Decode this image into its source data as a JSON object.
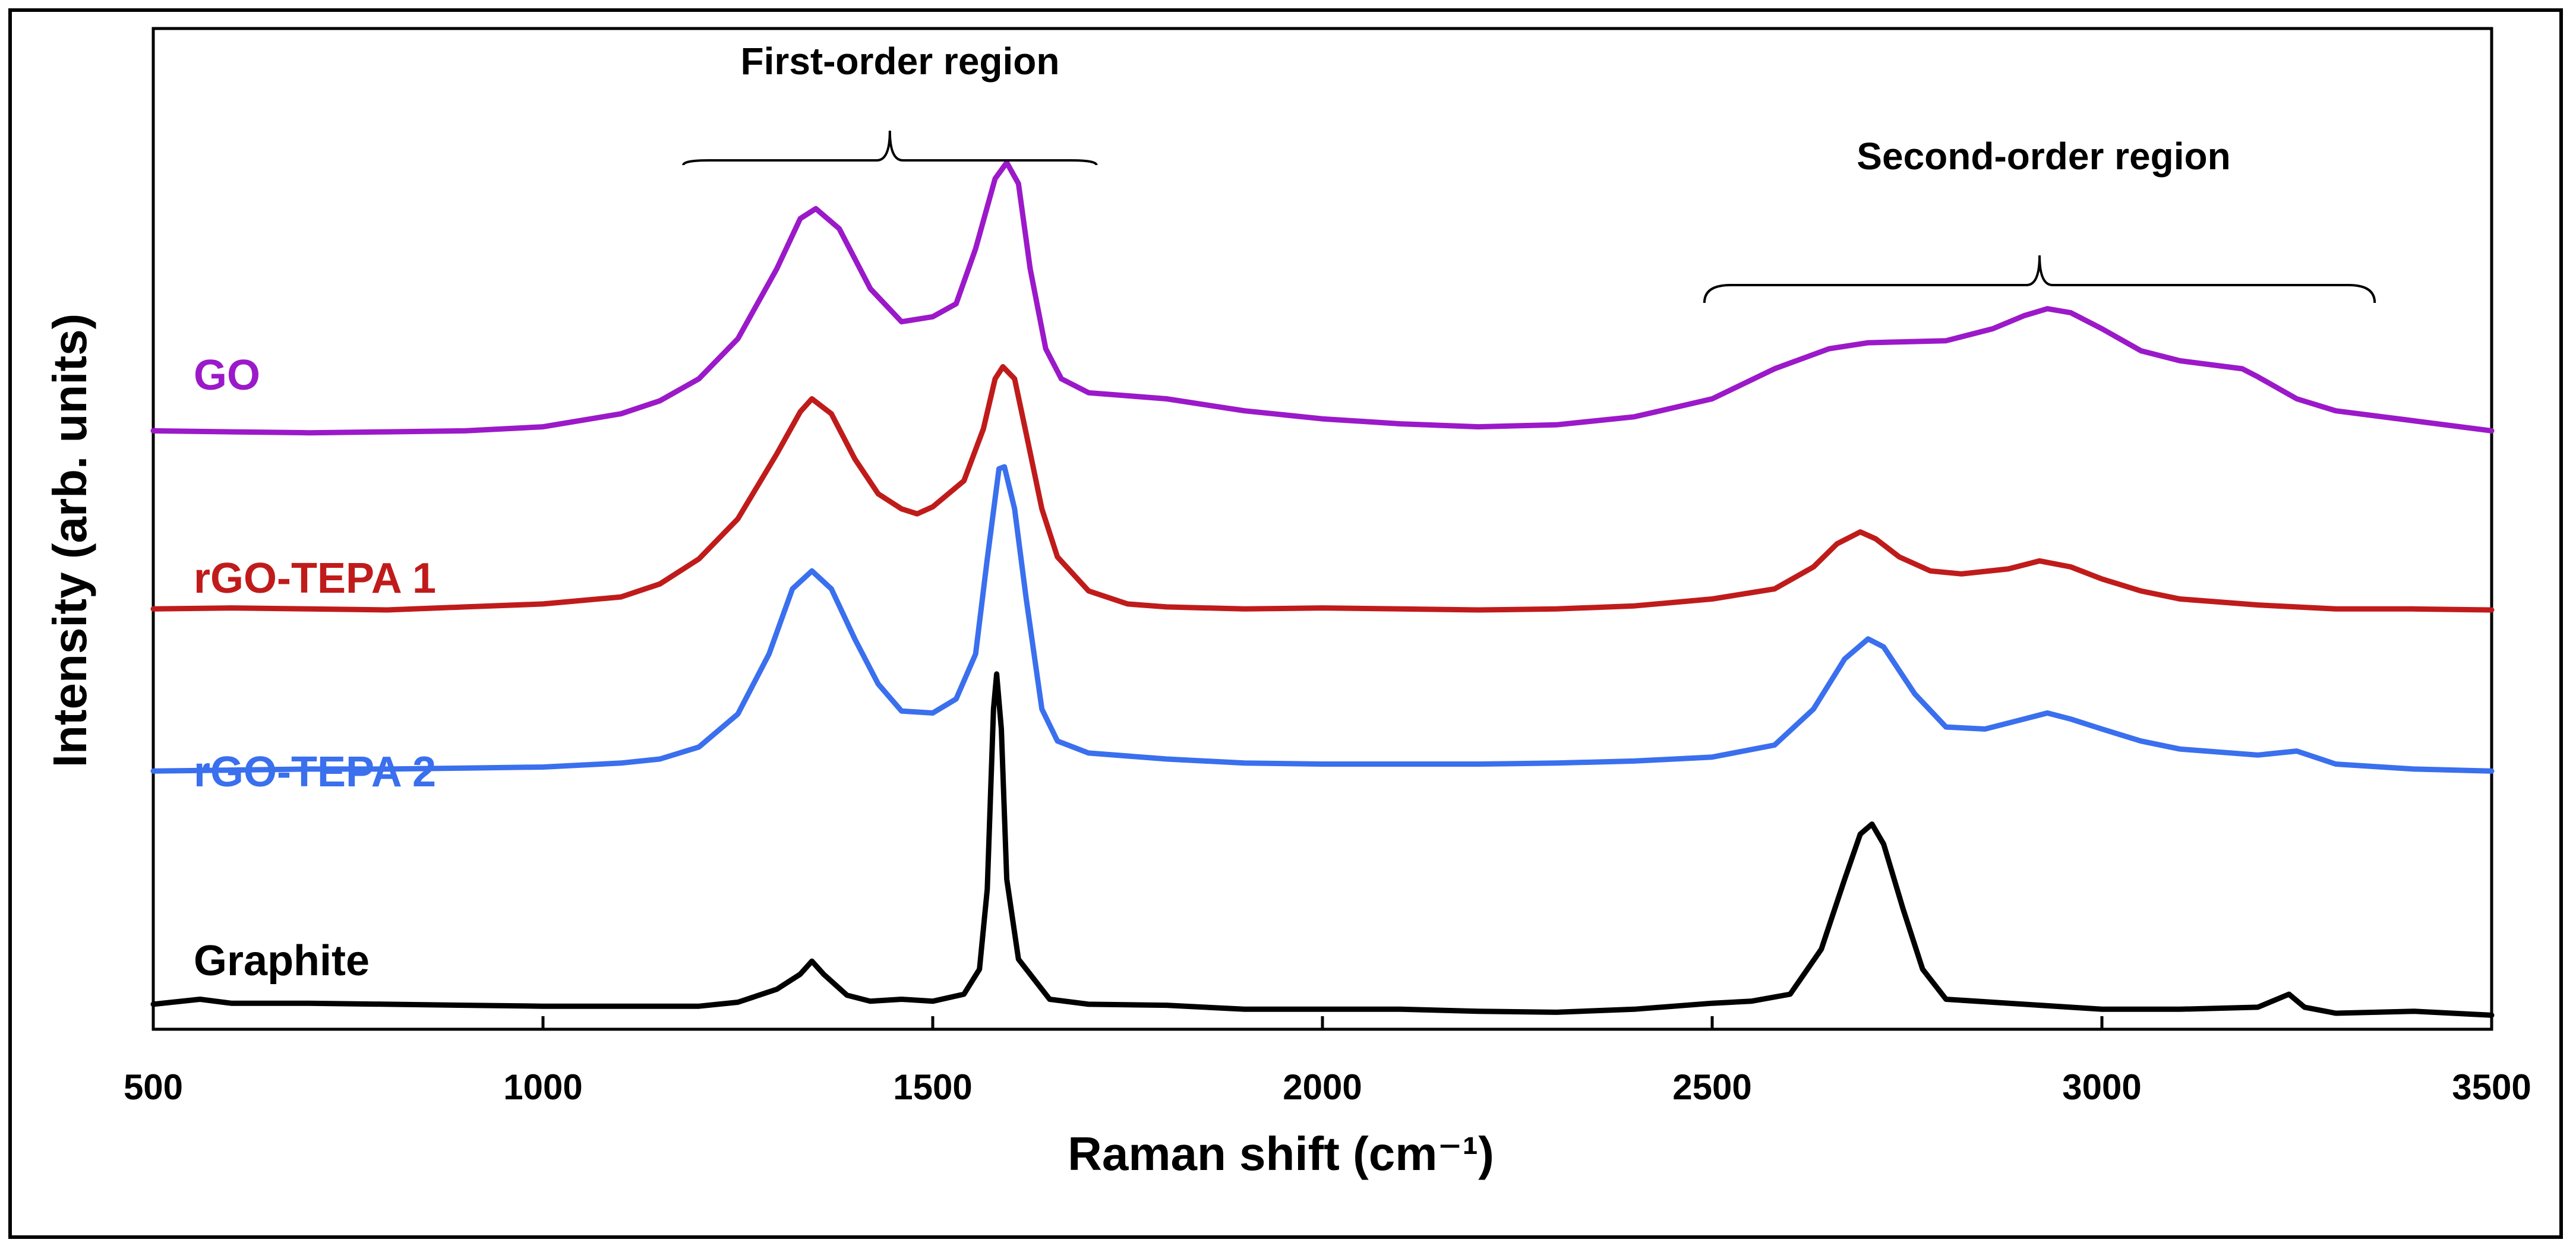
{
  "chart_data": {
    "type": "line",
    "title": "",
    "xlabel": "Raman shift (cm⁻¹)",
    "ylabel": "Intensity (arb. units)",
    "xlim": [
      500,
      3500
    ],
    "ylim": [
      0,
      1
    ],
    "x_ticks": [
      "500",
      "1000",
      "1500",
      "2000",
      "2500",
      "3000",
      "3500"
    ],
    "y_ticks": [],
    "grid": false,
    "units_note": "y values are normalized stacked intensities (arbitrary units, offset per series)",
    "series": [
      {
        "name": "GO",
        "color": "#9B19C9",
        "points": [
          [
            500,
            0.598
          ],
          [
            600,
            0.597
          ],
          [
            700,
            0.596
          ],
          [
            800,
            0.597
          ],
          [
            900,
            0.598
          ],
          [
            1000,
            0.602
          ],
          [
            1100,
            0.615
          ],
          [
            1150,
            0.628
          ],
          [
            1200,
            0.65
          ],
          [
            1250,
            0.69
          ],
          [
            1300,
            0.76
          ],
          [
            1330,
            0.81
          ],
          [
            1350,
            0.82
          ],
          [
            1380,
            0.8
          ],
          [
            1420,
            0.74
          ],
          [
            1460,
            0.707
          ],
          [
            1500,
            0.712
          ],
          [
            1530,
            0.725
          ],
          [
            1555,
            0.78
          ],
          [
            1580,
            0.85
          ],
          [
            1595,
            0.866
          ],
          [
            1610,
            0.845
          ],
          [
            1625,
            0.76
          ],
          [
            1645,
            0.68
          ],
          [
            1665,
            0.65
          ],
          [
            1700,
            0.636
          ],
          [
            1750,
            0.633
          ],
          [
            1800,
            0.63
          ],
          [
            1900,
            0.618
          ],
          [
            2000,
            0.61
          ],
          [
            2100,
            0.605
          ],
          [
            2200,
            0.602
          ],
          [
            2300,
            0.604
          ],
          [
            2400,
            0.612
          ],
          [
            2500,
            0.63
          ],
          [
            2580,
            0.66
          ],
          [
            2650,
            0.68
          ],
          [
            2700,
            0.686
          ],
          [
            2800,
            0.688
          ],
          [
            2860,
            0.7
          ],
          [
            2900,
            0.713
          ],
          [
            2930,
            0.72
          ],
          [
            2960,
            0.716
          ],
          [
            3000,
            0.7
          ],
          [
            3050,
            0.678
          ],
          [
            3100,
            0.668
          ],
          [
            3180,
            0.66
          ],
          [
            3200,
            0.652
          ],
          [
            3250,
            0.63
          ],
          [
            3300,
            0.618
          ],
          [
            3400,
            0.608
          ],
          [
            3500,
            0.598
          ]
        ]
      },
      {
        "name": "rGO-TEPA 1",
        "color": "#C01B1B",
        "points": [
          [
            500,
            0.42
          ],
          [
            600,
            0.421
          ],
          [
            700,
            0.42
          ],
          [
            800,
            0.419
          ],
          [
            900,
            0.422
          ],
          [
            1000,
            0.425
          ],
          [
            1100,
            0.432
          ],
          [
            1150,
            0.445
          ],
          [
            1200,
            0.47
          ],
          [
            1250,
            0.51
          ],
          [
            1300,
            0.575
          ],
          [
            1330,
            0.617
          ],
          [
            1345,
            0.63
          ],
          [
            1370,
            0.615
          ],
          [
            1400,
            0.57
          ],
          [
            1430,
            0.535
          ],
          [
            1460,
            0.52
          ],
          [
            1480,
            0.515
          ],
          [
            1500,
            0.522
          ],
          [
            1540,
            0.548
          ],
          [
            1565,
            0.6
          ],
          [
            1580,
            0.65
          ],
          [
            1590,
            0.662
          ],
          [
            1605,
            0.65
          ],
          [
            1620,
            0.595
          ],
          [
            1640,
            0.52
          ],
          [
            1660,
            0.472
          ],
          [
            1700,
            0.438
          ],
          [
            1750,
            0.425
          ],
          [
            1800,
            0.422
          ],
          [
            1900,
            0.42
          ],
          [
            2000,
            0.421
          ],
          [
            2100,
            0.42
          ],
          [
            2200,
            0.419
          ],
          [
            2300,
            0.42
          ],
          [
            2400,
            0.423
          ],
          [
            2500,
            0.43
          ],
          [
            2580,
            0.44
          ],
          [
            2630,
            0.462
          ],
          [
            2660,
            0.485
          ],
          [
            2690,
            0.497
          ],
          [
            2710,
            0.49
          ],
          [
            2740,
            0.472
          ],
          [
            2780,
            0.458
          ],
          [
            2820,
            0.455
          ],
          [
            2880,
            0.46
          ],
          [
            2920,
            0.468
          ],
          [
            2960,
            0.462
          ],
          [
            3000,
            0.45
          ],
          [
            3050,
            0.438
          ],
          [
            3100,
            0.43
          ],
          [
            3200,
            0.424
          ],
          [
            3300,
            0.42
          ],
          [
            3400,
            0.42
          ],
          [
            3500,
            0.419
          ]
        ]
      },
      {
        "name": "rGO-TEPA 2",
        "color": "#3A6FEE",
        "points": [
          [
            500,
            0.258
          ],
          [
            600,
            0.259
          ],
          [
            700,
            0.26
          ],
          [
            800,
            0.26
          ],
          [
            900,
            0.261
          ],
          [
            1000,
            0.262
          ],
          [
            1100,
            0.266
          ],
          [
            1150,
            0.27
          ],
          [
            1200,
            0.282
          ],
          [
            1250,
            0.315
          ],
          [
            1290,
            0.375
          ],
          [
            1320,
            0.44
          ],
          [
            1345,
            0.458
          ],
          [
            1370,
            0.44
          ],
          [
            1400,
            0.39
          ],
          [
            1430,
            0.345
          ],
          [
            1460,
            0.318
          ],
          [
            1500,
            0.316
          ],
          [
            1530,
            0.33
          ],
          [
            1555,
            0.375
          ],
          [
            1570,
            0.47
          ],
          [
            1585,
            0.56
          ],
          [
            1592,
            0.562
          ],
          [
            1605,
            0.52
          ],
          [
            1620,
            0.43
          ],
          [
            1640,
            0.32
          ],
          [
            1660,
            0.288
          ],
          [
            1700,
            0.276
          ],
          [
            1800,
            0.27
          ],
          [
            1900,
            0.266
          ],
          [
            2000,
            0.265
          ],
          [
            2100,
            0.265
          ],
          [
            2200,
            0.265
          ],
          [
            2300,
            0.266
          ],
          [
            2400,
            0.268
          ],
          [
            2500,
            0.272
          ],
          [
            2580,
            0.284
          ],
          [
            2630,
            0.32
          ],
          [
            2670,
            0.37
          ],
          [
            2700,
            0.39
          ],
          [
            2720,
            0.382
          ],
          [
            2760,
            0.335
          ],
          [
            2800,
            0.302
          ],
          [
            2850,
            0.3
          ],
          [
            2900,
            0.31
          ],
          [
            2930,
            0.316
          ],
          [
            2960,
            0.31
          ],
          [
            3000,
            0.3
          ],
          [
            3050,
            0.288
          ],
          [
            3100,
            0.28
          ],
          [
            3200,
            0.274
          ],
          [
            3250,
            0.278
          ],
          [
            3300,
            0.265
          ],
          [
            3400,
            0.26
          ],
          [
            3500,
            0.258
          ]
        ]
      },
      {
        "name": "Graphite",
        "color": "#000000",
        "points": [
          [
            500,
            0.025
          ],
          [
            560,
            0.03
          ],
          [
            600,
            0.026
          ],
          [
            700,
            0.026
          ],
          [
            800,
            0.025
          ],
          [
            900,
            0.024
          ],
          [
            1000,
            0.023
          ],
          [
            1100,
            0.023
          ],
          [
            1200,
            0.023
          ],
          [
            1250,
            0.027
          ],
          [
            1300,
            0.04
          ],
          [
            1330,
            0.055
          ],
          [
            1345,
            0.068
          ],
          [
            1360,
            0.055
          ],
          [
            1390,
            0.034
          ],
          [
            1420,
            0.028
          ],
          [
            1460,
            0.03
          ],
          [
            1500,
            0.028
          ],
          [
            1540,
            0.035
          ],
          [
            1560,
            0.06
          ],
          [
            1570,
            0.14
          ],
          [
            1578,
            0.32
          ],
          [
            1582,
            0.355
          ],
          [
            1588,
            0.3
          ],
          [
            1595,
            0.15
          ],
          [
            1610,
            0.07
          ],
          [
            1630,
            0.05
          ],
          [
            1650,
            0.03
          ],
          [
            1700,
            0.025
          ],
          [
            1800,
            0.024
          ],
          [
            1900,
            0.02
          ],
          [
            2000,
            0.02
          ],
          [
            2100,
            0.02
          ],
          [
            2200,
            0.018
          ],
          [
            2300,
            0.017
          ],
          [
            2400,
            0.02
          ],
          [
            2500,
            0.026
          ],
          [
            2550,
            0.028
          ],
          [
            2600,
            0.035
          ],
          [
            2640,
            0.08
          ],
          [
            2670,
            0.15
          ],
          [
            2690,
            0.195
          ],
          [
            2705,
            0.205
          ],
          [
            2720,
            0.185
          ],
          [
            2745,
            0.12
          ],
          [
            2770,
            0.06
          ],
          [
            2800,
            0.03
          ],
          [
            2900,
            0.025
          ],
          [
            3000,
            0.02
          ],
          [
            3100,
            0.02
          ],
          [
            3200,
            0.022
          ],
          [
            3240,
            0.035
          ],
          [
            3260,
            0.022
          ],
          [
            3300,
            0.016
          ],
          [
            3400,
            0.018
          ],
          [
            3500,
            0.014
          ]
        ]
      }
    ],
    "annotations": [
      {
        "text": "First-order region",
        "x_from": 1180,
        "x_to": 1710
      },
      {
        "text": "Second-order region",
        "x_from": 2490,
        "x_to": 3350
      }
    ]
  }
}
